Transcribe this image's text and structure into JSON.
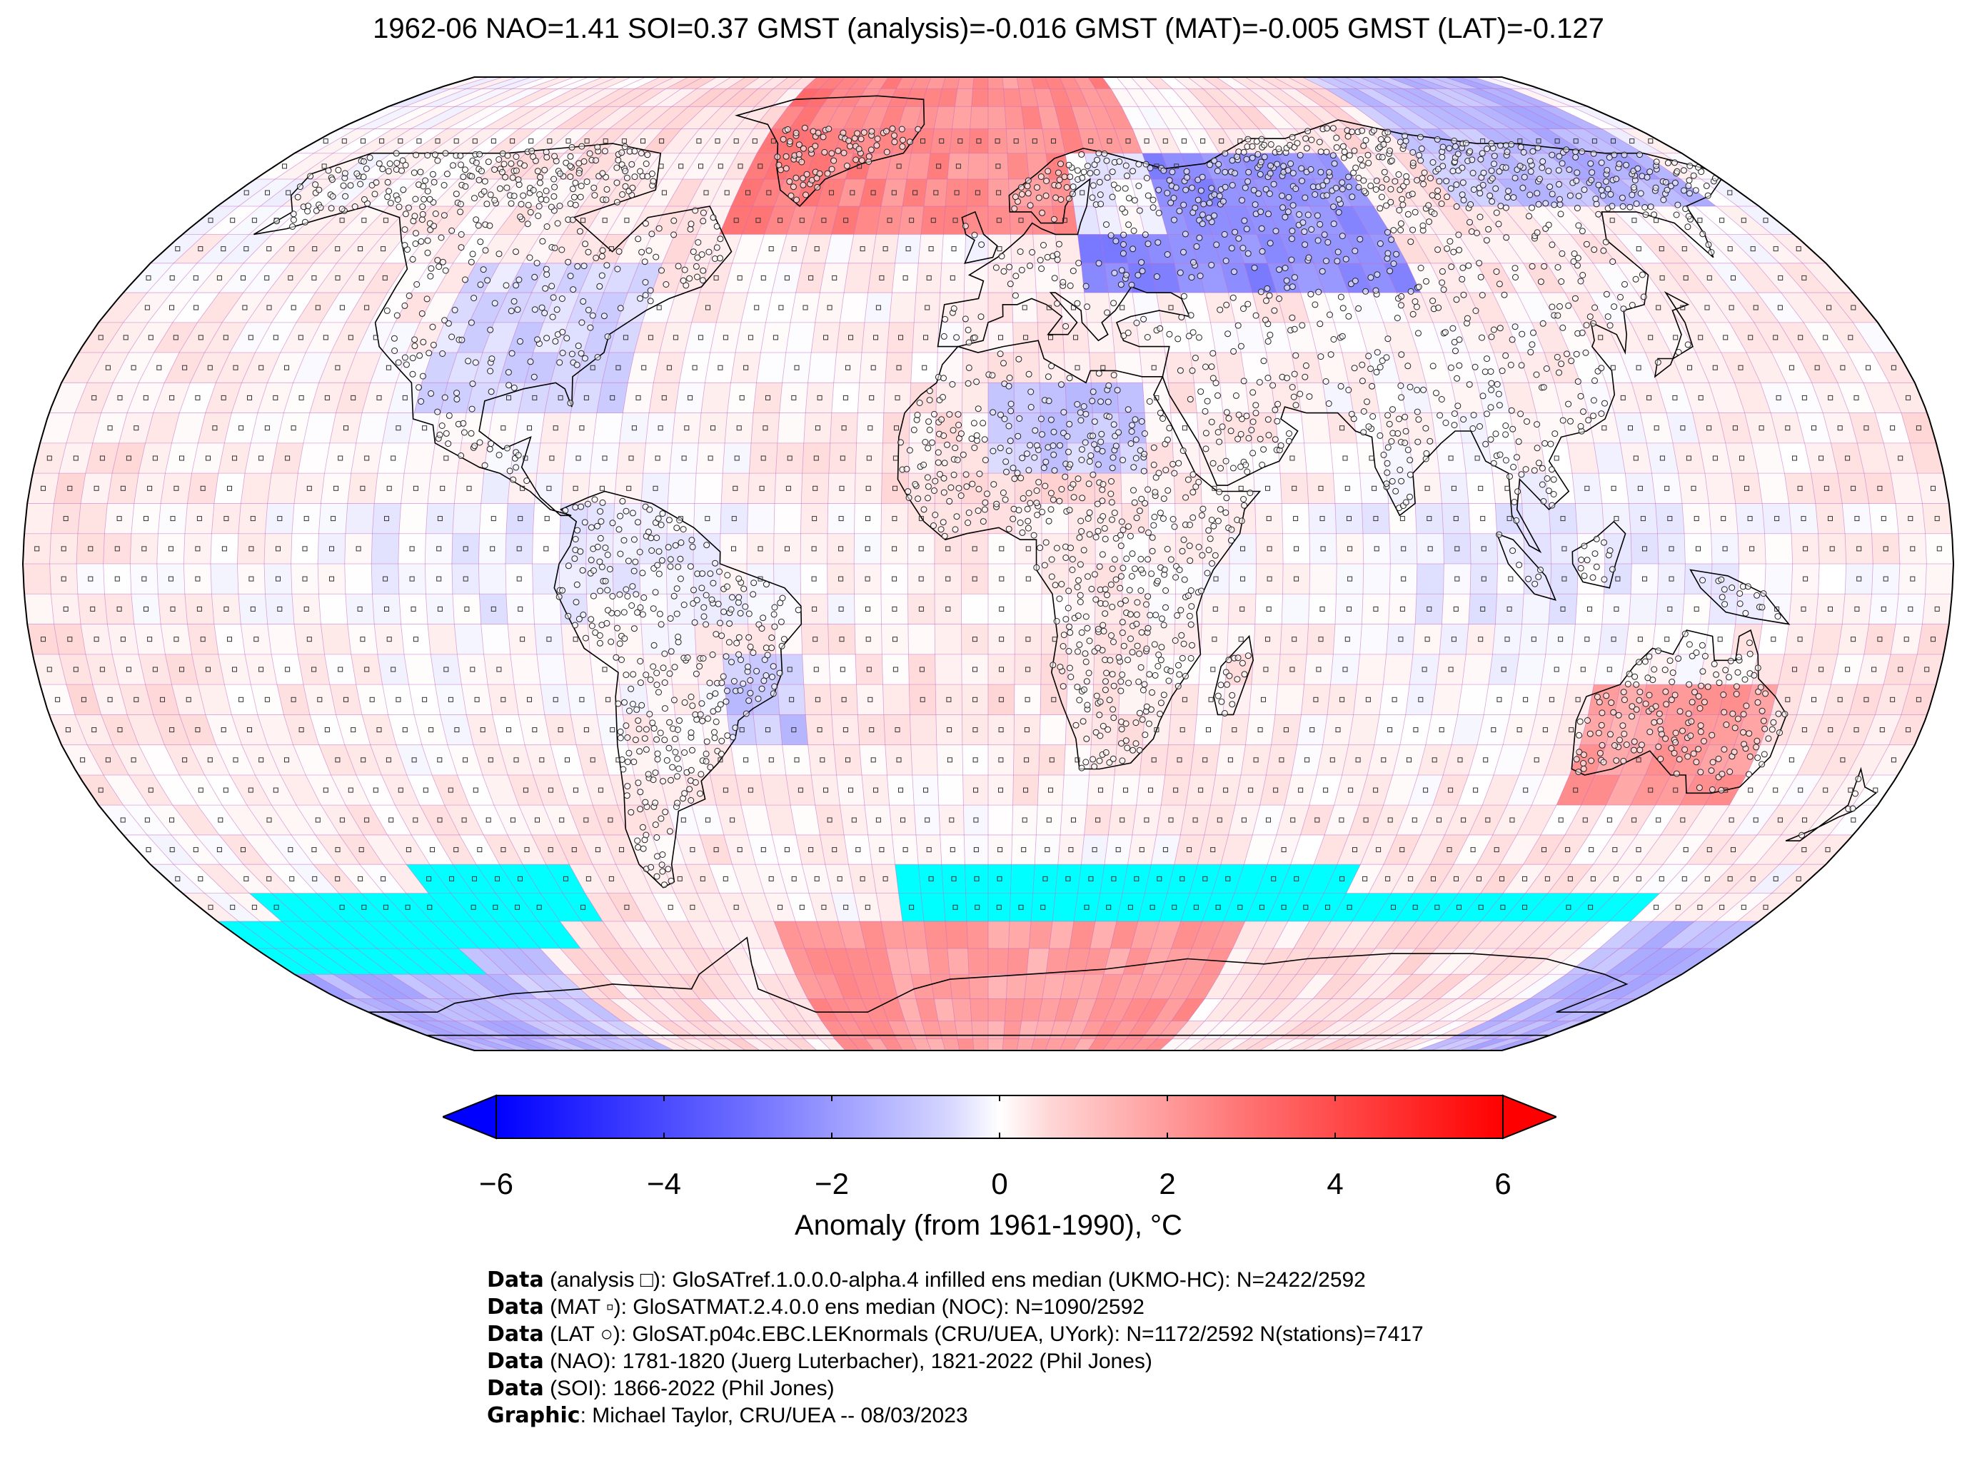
{
  "title": "1962-06 NAO=1.41 SOI=0.37 GMST (analysis)=-0.016 GMST (MAT)=-0.005 GMST (LAT)=-0.127",
  "colorbar": {
    "label": "Anomaly (from 1961-1990), °C",
    "range": [
      -6,
      6
    ],
    "ticks": [
      "−6",
      "−4",
      "−2",
      "0",
      "2",
      "4",
      "6"
    ],
    "cold_color": "#0000ff",
    "neutral_color": "#ffffff",
    "warm_color": "#ff0000",
    "missing_color": "#00ffff"
  },
  "map": {
    "projection": "Robinson",
    "grid_color": "#c060c0",
    "coast_color": "#000000"
  },
  "credits": [
    {
      "bold": "Data",
      "text": " (analysis □): GloSATref.1.0.0.0-alpha.4 infilled ens median (UKMO-HC): N=2422/2592"
    },
    {
      "bold": "Data",
      "text": " (MAT ▫): GloSATMAT.2.4.0.0 ens median (NOC): N=1090/2592"
    },
    {
      "bold": "Data",
      "text": " (LAT ○): GloSAT.p04c.EBC.LEKnormals (CRU/UEA, UYork): N=1172/2592 N(stations)=7417"
    },
    {
      "bold": "Data",
      "text": " (NAO): 1781-1820 (Juerg Luterbacher), 1821-2022 (Phil Jones)"
    },
    {
      "bold": "Data",
      "text": " (SOI): 1866-2022 (Phil Jones)"
    },
    {
      "bold": "Graphic",
      "text": ": Michael Taylor, CRU/UEA -- 08/03/2023"
    }
  ]
}
